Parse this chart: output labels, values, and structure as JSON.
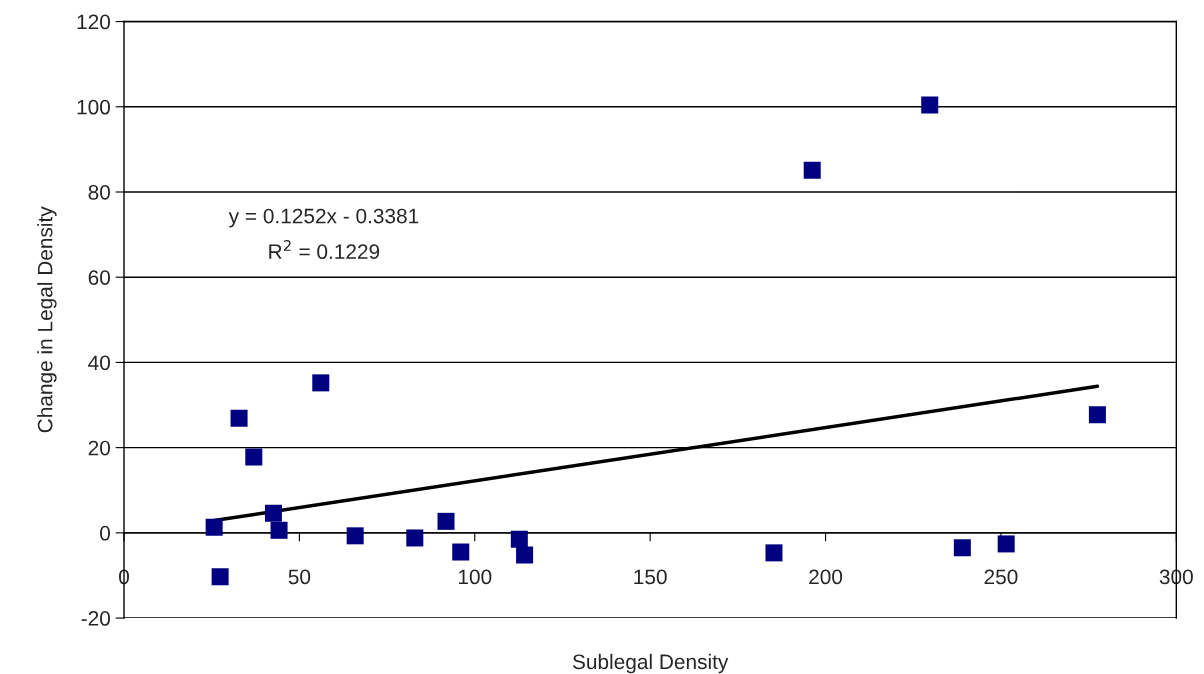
{
  "chart_data": {
    "type": "scatter",
    "xlabel": "Sublegal Density",
    "ylabel": "Change in Legal Density",
    "xlim": [
      0,
      300
    ],
    "xticks": [
      0,
      50,
      100,
      150,
      200,
      250,
      300
    ],
    "ylim": [
      -20,
      120
    ],
    "yticks": [
      -20,
      0,
      20,
      40,
      60,
      80,
      100,
      120
    ],
    "grid": "y",
    "marker": "square",
    "series": [
      {
        "color": "#000080",
        "x": [
          25.7,
          27.4,
          32.8,
          37.0,
          42.6,
          44.2,
          56.1,
          65.9,
          82.9,
          91.8,
          96.0,
          112.7,
          114.2,
          185.3,
          196.2,
          229.7,
          239.0,
          251.5,
          277.5
        ],
        "values": [
          1.3,
          -10.3,
          26.9,
          17.8,
          4.6,
          0.6,
          35.2,
          -0.7,
          -1.2,
          2.7,
          -4.5,
          -1.5,
          -5.2,
          -4.7,
          85.1,
          100.4,
          -3.5,
          -2.6,
          27.7
        ]
      },
      {
        "type": "line",
        "marker": "none",
        "color": "#000000",
        "x": [
          25.7,
          277.5
        ],
        "values": [
          2.9,
          34.4
        ]
      }
    ],
    "annotations": [
      "y = 0.1252x - 0.3381",
      "R$^{2}$ = 0.1229"
    ]
  }
}
